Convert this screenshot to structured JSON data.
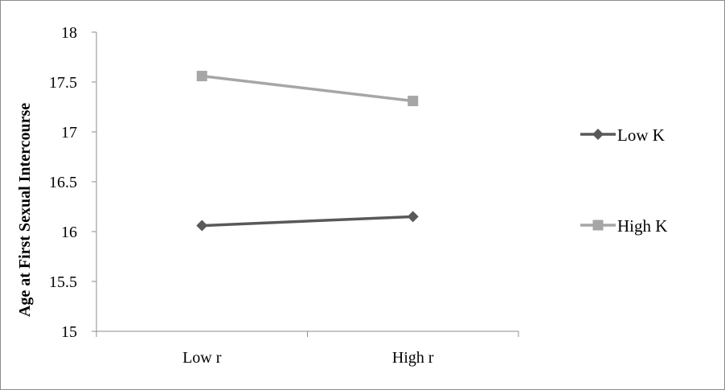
{
  "chart_data": {
    "type": "line",
    "title": "",
    "xlabel": "",
    "ylabel": "Age at First Sexual Intercourse",
    "categories": [
      "Low r",
      "High r"
    ],
    "ylim": [
      15,
      18
    ],
    "yticks": [
      "15",
      "15.5",
      "16",
      "16.5",
      "17",
      "17.5",
      "18"
    ],
    "series": [
      {
        "name": "Low K",
        "values": [
          16.06,
          16.15
        ],
        "color": "#595959",
        "marker": "diamond"
      },
      {
        "name": "High K",
        "values": [
          17.56,
          17.31
        ],
        "color": "#a6a6a6",
        "marker": "square"
      }
    ],
    "legend_position": "right",
    "grid": false
  }
}
